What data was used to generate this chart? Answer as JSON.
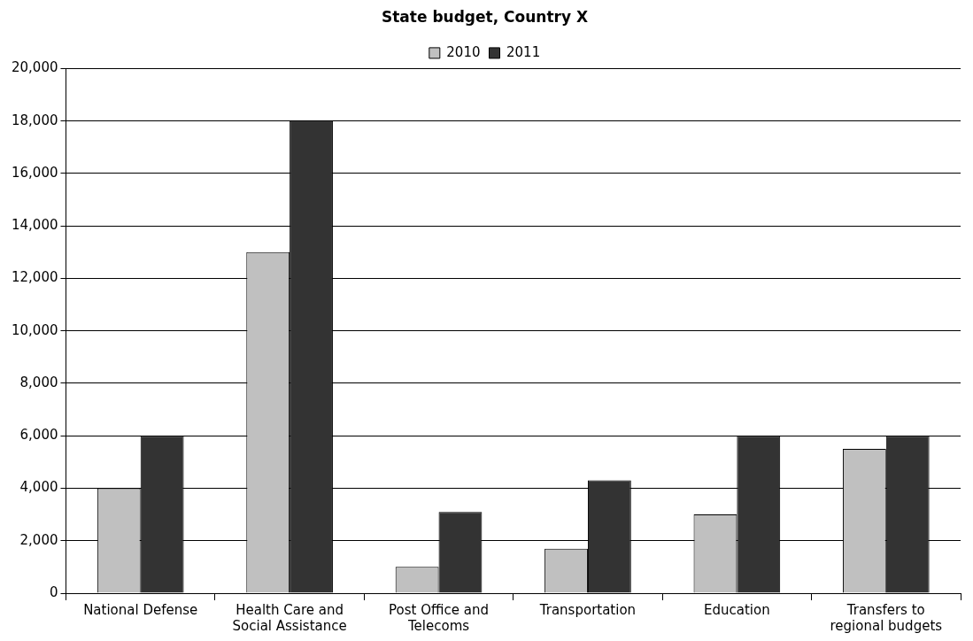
{
  "chart_data": {
    "type": "bar",
    "title": "State budget, Country X",
    "categories": [
      "National Defense",
      "Health Care and Social Assistance",
      "Post Office and Telecoms",
      "Transportation",
      "Education",
      "Transfers to regional budgets"
    ],
    "series": [
      {
        "name": "2010",
        "color": "#c0c0c0",
        "values": [
          4000,
          13000,
          1000,
          1700,
          3000,
          5500
        ]
      },
      {
        "name": "2011",
        "color": "#333333",
        "values": [
          6000,
          18000,
          3100,
          4300,
          6000,
          6000
        ]
      }
    ],
    "ylim": [
      0,
      20000
    ],
    "yticks": [
      {
        "value": 0,
        "label": "0"
      },
      {
        "value": 2000,
        "label": "2,000"
      },
      {
        "value": 4000,
        "label": "4,000"
      },
      {
        "value": 6000,
        "label": "6,000"
      },
      {
        "value": 8000,
        "label": "8,000"
      },
      {
        "value": 10000,
        "label": "10,000"
      },
      {
        "value": 12000,
        "label": "12,000"
      },
      {
        "value": 14000,
        "label": "14,000"
      },
      {
        "value": 16000,
        "label": "16,000"
      },
      {
        "value": 18000,
        "label": "18,000"
      },
      {
        "value": 20000,
        "label": "20,000"
      }
    ],
    "grid": "y",
    "legend": "top"
  }
}
